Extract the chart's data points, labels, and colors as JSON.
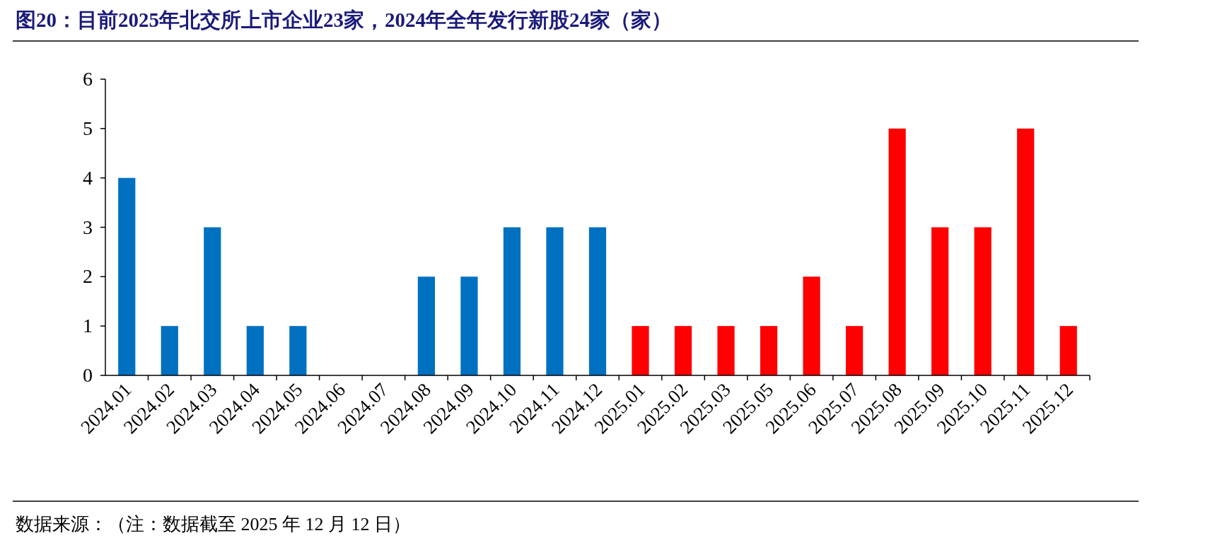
{
  "chart_data": {
    "type": "bar",
    "title": "图20：目前2025年北交所上市企业23家，2024年全年发行新股24家（家）",
    "categories": [
      "2024.01",
      "2024.02",
      "2024.03",
      "2024.04",
      "2024.05",
      "2024.06",
      "2024.07",
      "2024.08",
      "2024.09",
      "2024.10",
      "2024.11",
      "2024.12",
      "2025.01",
      "2025.02",
      "2025.03",
      "2025.05",
      "2025.06",
      "2025.07",
      "2025.08",
      "2025.09",
      "2025.10",
      "2025.11",
      "2025.12"
    ],
    "values": [
      4,
      1,
      3,
      1,
      1,
      0,
      0,
      2,
      2,
      3,
      3,
      3,
      1,
      1,
      1,
      1,
      2,
      1,
      5,
      3,
      3,
      5,
      1
    ],
    "colors": [
      "#0070c0",
      "#0070c0",
      "#0070c0",
      "#0070c0",
      "#0070c0",
      "#0070c0",
      "#0070c0",
      "#0070c0",
      "#0070c0",
      "#0070c0",
      "#0070c0",
      "#0070c0",
      "#ff0000",
      "#ff0000",
      "#ff0000",
      "#ff0000",
      "#ff0000",
      "#ff0000",
      "#ff0000",
      "#ff0000",
      "#ff0000",
      "#ff0000",
      "#ff0000"
    ],
    "ylim": [
      0,
      6
    ],
    "yticks": [
      0,
      1,
      2,
      3,
      4,
      5,
      6
    ],
    "annotations": [
      "数据来源：（注：数据截至 2025 年 12 月 12 日）"
    ]
  }
}
